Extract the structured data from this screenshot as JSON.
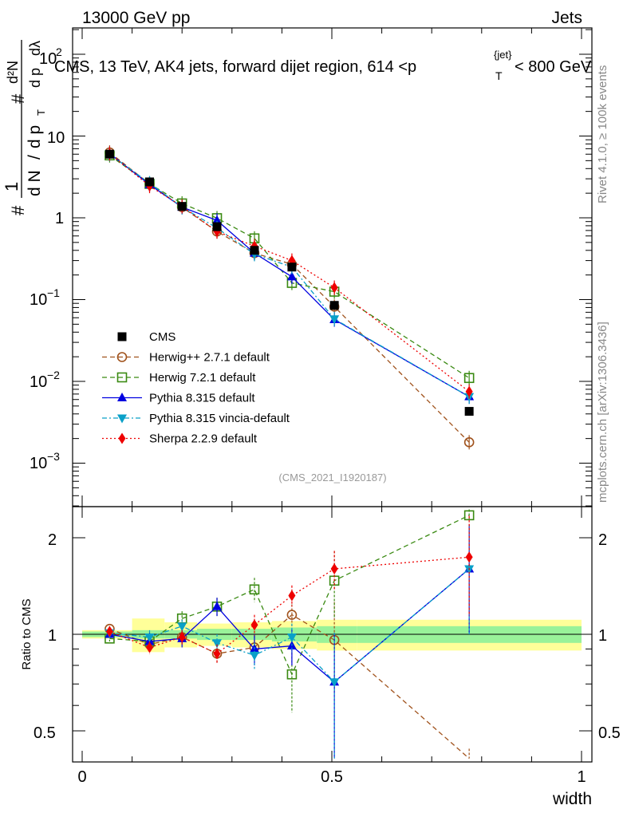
{
  "header": {
    "energy": "13000 GeV pp",
    "category": "Jets",
    "title_main": "CMS, 13 TeV, AK4 jets, forward dijet region, 614 <p",
    "title_sub": "T",
    "title_sup": "{jet}",
    "title_tail": "< 800 GeV"
  },
  "labels": {
    "rivet": "Rivet 4.1.0, ≥ 100k events",
    "mcplots": "mcplots.cern.ch [arXiv:1306.3436]",
    "analysis": "(CMS_2021_I1920187)"
  },
  "axes": {
    "xlabel": "width",
    "ratio_label": "Ratio to CMS",
    "ylabel_top": {
      "one": "1",
      "num_dN": "d N",
      "slash": "/",
      "d": "d",
      "p": "p",
      "T": "T",
      "hash": "#",
      "d2N": "d²N",
      "dp": "d p",
      "dlam": "dλ"
    },
    "x_ticks": [
      "0",
      "0.5",
      "1"
    ],
    "y_ticks_main": [
      "10",
      "1"
    ],
    "y_ticks_exp": [
      {
        "base": "10",
        "exp": "2"
      },
      {
        "base": "10",
        "exp": "−1"
      },
      {
        "base": "10",
        "exp": "−2"
      },
      {
        "base": "10",
        "exp": "−3"
      }
    ],
    "y_ticks_ratio": [
      "2",
      "1",
      "0.5"
    ]
  },
  "chart_data": {
    "type": "line",
    "title": "CMS, 13 TeV, AK4 jets, forward dijet region, 614 < pT{jet} < 800 GeV",
    "xlabel": "width",
    "ylabel": "1/N dN/dλ (per pT)",
    "xlim": [
      0,
      1
    ],
    "ylim": [
      0.0003,
      250
    ],
    "yscale": "log",
    "ratio_ylim": [
      0.4,
      2.3
    ],
    "x": [
      0.055,
      0.135,
      0.2,
      0.27,
      0.345,
      0.42,
      0.505,
      0.775
    ],
    "bands": {
      "edges": [
        0,
        0.1,
        0.165,
        0.23,
        0.3,
        0.38,
        0.47,
        0.55,
        1.0
      ],
      "green_half": [
        0.02,
        0.03,
        0.03,
        0.04,
        0.04,
        0.05,
        0.06,
        0.06
      ],
      "yellow_half": [
        0.03,
        0.12,
        0.09,
        0.08,
        0.09,
        0.1,
        0.11,
        0.11
      ]
    },
    "series": [
      {
        "name": "CMS",
        "color": "#000000",
        "marker": "square-filled",
        "dash": "",
        "values": [
          6.0,
          2.75,
          1.38,
          0.78,
          0.4,
          0.25,
          0.085,
          0.0043
        ],
        "ratio": [
          1,
          1,
          1,
          1,
          1,
          1,
          1,
          1
        ],
        "ratio_err": [
          0,
          0,
          0,
          0,
          0,
          0,
          0,
          0
        ]
      },
      {
        "name": "Herwig++ 2.7.1 default",
        "color": "#a0521c",
        "marker": "circle-open",
        "dash": "6,4",
        "values": [
          6.3,
          2.6,
          1.35,
          0.68,
          0.37,
          0.27,
          0.082,
          0.0018
        ],
        "ratio": [
          1.04,
          0.93,
          0.98,
          0.87,
          0.91,
          1.15,
          0.96,
          0.41
        ],
        "ratio_err": [
          0.02,
          0.05,
          0.05,
          0.06,
          0.08,
          0.09,
          0.3,
          0.03
        ]
      },
      {
        "name": "Herwig 7.2.1 default",
        "color": "#3a8a12",
        "marker": "square-open",
        "dash": "6,4",
        "values": [
          5.8,
          2.6,
          1.5,
          0.99,
          0.56,
          0.16,
          0.125,
          0.011
        ],
        "ratio": [
          0.97,
          0.95,
          1.12,
          1.22,
          1.38,
          0.75,
          1.47,
          2.35
        ],
        "ratio_err": [
          0.02,
          0.06,
          0.06,
          0.08,
          0.12,
          0.18,
          0.35,
          0.1
        ]
      },
      {
        "name": "Pythia 8.315 default",
        "color": "#0000e0",
        "marker": "triangle-up",
        "dash": "",
        "values": [
          6.1,
          2.55,
          1.35,
          0.93,
          0.37,
          0.19,
          0.057,
          0.0065
        ],
        "ratio": [
          1.0,
          0.95,
          0.97,
          1.22,
          0.9,
          0.92,
          0.71,
          1.6
        ],
        "ratio_err": [
          0.02,
          0.06,
          0.06,
          0.08,
          0.1,
          0.12,
          0.3,
          0.6
        ]
      },
      {
        "name": "Pythia 8.315 vincia-default",
        "color": "#0aa0c8",
        "marker": "triangle-down",
        "dash": "6,3,2,3",
        "values": [
          6.0,
          2.65,
          1.35,
          0.75,
          0.36,
          0.25,
          0.058,
          0.0065
        ],
        "ratio": [
          1.01,
          0.98,
          1.06,
          0.94,
          0.86,
          0.98,
          0.71,
          1.6
        ],
        "ratio_err": [
          0.02,
          0.05,
          0.05,
          0.06,
          0.08,
          0.1,
          0.3,
          0.6
        ]
      },
      {
        "name": "Sherpa 2.2.9 default",
        "color": "#ee0000",
        "marker": "diamond",
        "dash": "2,3",
        "values": [
          6.1,
          2.45,
          1.38,
          0.68,
          0.45,
          0.3,
          0.14,
          0.0075
        ],
        "ratio": [
          1.02,
          0.91,
          0.98,
          0.87,
          1.07,
          1.32,
          1.6,
          1.74
        ],
        "ratio_err": [
          0.02,
          0.04,
          0.05,
          0.06,
          0.08,
          0.1,
          0.22,
          0.6
        ]
      }
    ]
  }
}
